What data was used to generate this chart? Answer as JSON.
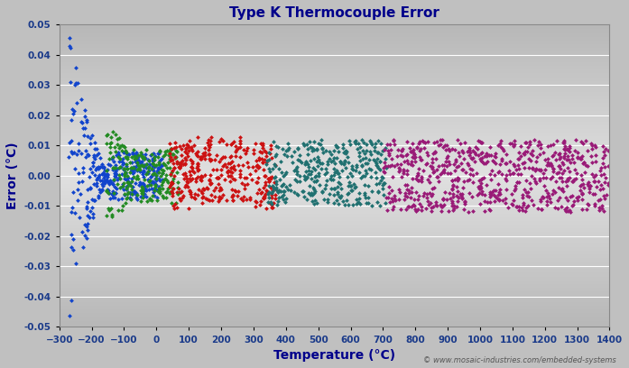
{
  "title": "Type K Thermocouple Error",
  "xlabel": "Temperature (°C)",
  "ylabel": "Error (°C)",
  "xlim": [
    -300,
    1400
  ],
  "ylim": [
    -0.05,
    0.05
  ],
  "xticks": [
    -300,
    -200,
    -100,
    0,
    100,
    200,
    300,
    400,
    500,
    600,
    700,
    800,
    900,
    1000,
    1100,
    1200,
    1300,
    1400
  ],
  "yticks": [
    -0.05,
    -0.04,
    -0.03,
    -0.02,
    -0.01,
    0.0,
    0.01,
    0.02,
    0.03,
    0.04,
    0.05
  ],
  "fig_bg_color": "#c0c0c0",
  "plot_bg_top": "#b8b8b8",
  "plot_bg_mid": "#e0e0e0",
  "plot_bg_bot": "#b8b8b8",
  "title_color": "#00008B",
  "axis_label_color": "#00008B",
  "tick_label_color": "#1a3a8a",
  "copyright_text": "© www.mosaic-industries.com/embedded-systems",
  "grid_color": "#ffffff",
  "colors": {
    "blue": "#1144cc",
    "green": "#228B22",
    "red": "#cc1111",
    "teal": "#207070",
    "purple": "#991a77"
  }
}
